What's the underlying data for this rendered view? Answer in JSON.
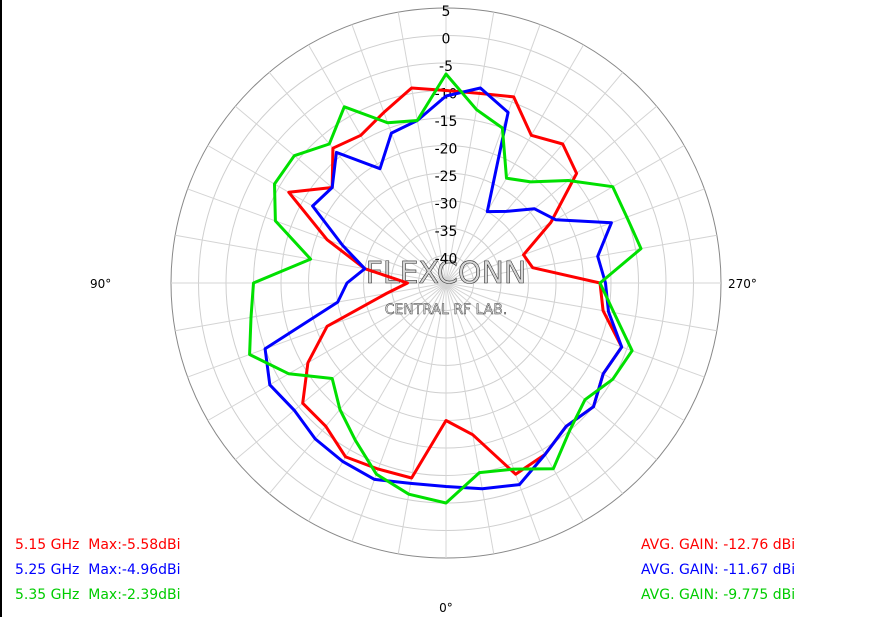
{
  "chart_data": {
    "type": "polar-line",
    "radial_ticks": [
      "5",
      "0",
      "-5",
      "-10",
      "-15",
      "-20",
      "-25",
      "-30",
      "-35",
      "-40"
    ],
    "rlim": [
      -45,
      5
    ],
    "angle_labels": {
      "top": "",
      "left": "90°",
      "right": "270°",
      "bottom": "0°"
    },
    "angle_orientation": "0° at bottom, 90° at left, 270° at right",
    "watermark": {
      "line1": "FLEXCONN",
      "line2": "CENTRAL RF LAB."
    },
    "grid": true,
    "series": [
      {
        "name": "5.15 GHz",
        "color": "#ff0000",
        "angles": [
          0,
          10,
          20,
          30,
          40,
          50,
          60,
          70,
          80,
          90,
          100,
          110,
          120,
          130,
          140,
          150,
          160,
          170,
          180,
          190,
          200,
          210,
          220,
          230,
          240,
          250,
          260,
          270,
          280,
          290,
          300,
          310,
          320,
          330,
          340,
          350
        ],
        "gains": [
          -20,
          -9,
          -9,
          -8.5,
          -11,
          -11,
          -16,
          -22,
          -34,
          -38,
          -30,
          -22,
          -12,
          -18,
          -13,
          -14,
          -12,
          -9,
          -10,
          -10,
          -9,
          -14,
          -12,
          -14,
          -23,
          -30,
          -29,
          -17,
          -16,
          -11,
          -12,
          -10,
          -11,
          -9,
          -8,
          -17
        ]
      },
      {
        "name": "5.25 GHz",
        "color": "#0000ff",
        "angles": [
          0,
          10,
          20,
          30,
          40,
          50,
          60,
          70,
          80,
          90,
          100,
          110,
          120,
          130,
          140,
          150,
          160,
          170,
          180,
          190,
          200,
          210,
          220,
          230,
          240,
          250,
          260,
          270,
          280,
          290,
          300,
          310,
          320,
          330,
          340,
          350
        ],
        "gains": [
          -8,
          -8,
          -7,
          -7.5,
          -8,
          -9,
          -8,
          -10,
          -25,
          -27,
          -30,
          -25,
          -17,
          -18,
          -14,
          -21,
          -16,
          -15,
          -11,
          -9,
          -12,
          -30,
          -28,
          -24,
          -22,
          -13,
          -17,
          -16,
          -15,
          -11,
          -12,
          -10,
          -11,
          -9,
          -6,
          -7
        ]
      },
      {
        "name": "5.35 GHz",
        "color": "#00e000",
        "angles": [
          0,
          10,
          20,
          30,
          40,
          50,
          60,
          70,
          80,
          90,
          100,
          110,
          120,
          130,
          140,
          150,
          160,
          170,
          180,
          190,
          200,
          210,
          220,
          230,
          240,
          250,
          260,
          270,
          280,
          290,
          300,
          310,
          320,
          330,
          340,
          350
        ],
        "gains": [
          -5,
          -6,
          -8,
          -12,
          -15,
          -18,
          -12,
          -7,
          -9,
          -10,
          -20,
          -12,
          -9,
          -9,
          -12,
          -8,
          -14,
          -15,
          -7,
          -13,
          -15,
          -23,
          -21,
          -16,
          -10,
          -10,
          -9,
          -17,
          -14,
          -9,
          -10,
          -12,
          -10,
          -6,
          -9,
          -10
        ]
      }
    ]
  },
  "legend_left": [
    {
      "text": "5.15 GHz  Max:-5.58dBi",
      "color": "#ff0000"
    },
    {
      "text": "5.25 GHz  Max:-4.96dBi",
      "color": "#0000ff"
    },
    {
      "text": "5.35 GHz  Max:-2.39dBi",
      "color": "#00cc00"
    }
  ],
  "legend_right": [
    {
      "text": "AVG. GAIN: -12.76 dBi",
      "color": "#ff0000"
    },
    {
      "text": "AVG. GAIN: -11.67 dBi",
      "color": "#0000ff"
    },
    {
      "text": "AVG. GAIN: -9.775 dBi",
      "color": "#00cc00"
    }
  ]
}
